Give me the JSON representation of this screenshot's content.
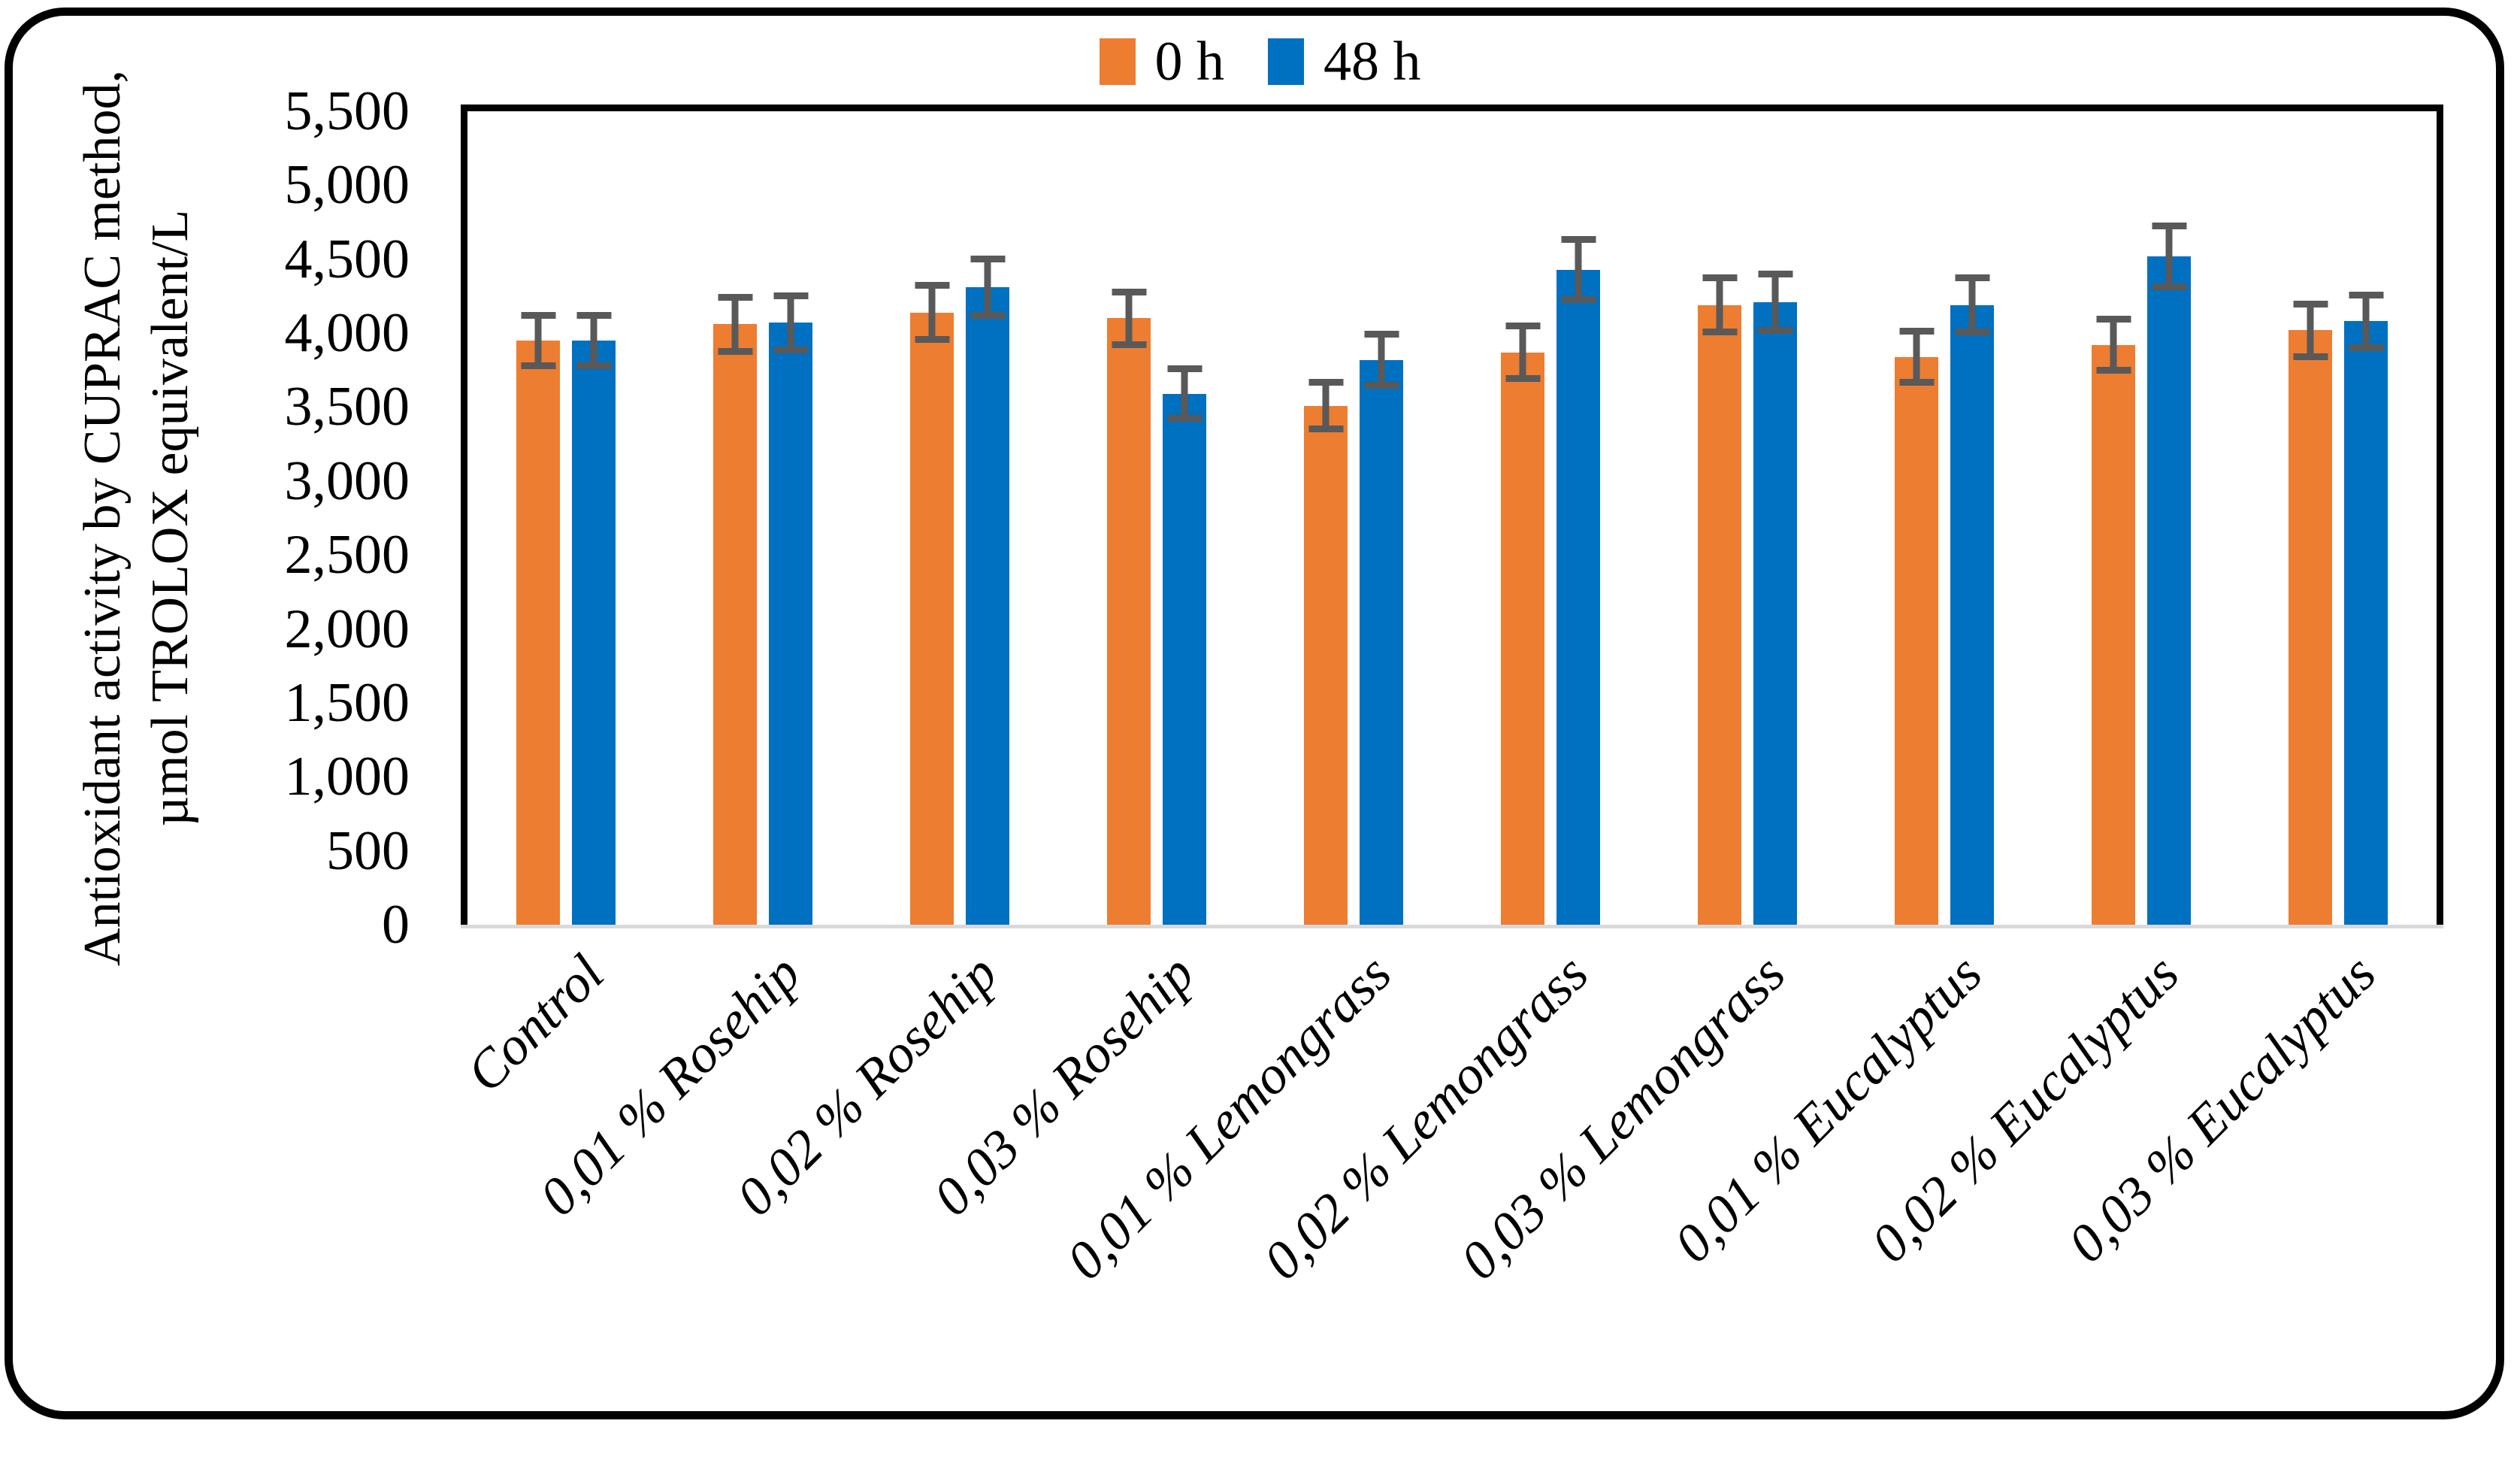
{
  "figure": {
    "description": "Grouped column chart with error bars inside a rounded black border"
  },
  "legend": {
    "position": "top-center",
    "items": [
      {
        "label": "0 h"
      },
      {
        "label": "48 h"
      }
    ]
  },
  "y_axis": {
    "title_line1": "Antioxidant activity by CUPRAC method,",
    "title_line2": "µmol TROLOX equivalent/L",
    "tick_labels": [
      "5,500",
      "5,000",
      "4,500",
      "4,000",
      "3,500",
      "3,000",
      "2,500",
      "2,000",
      "1,500",
      "1,000",
      "500",
      "0"
    ]
  },
  "chart_data": {
    "type": "bar",
    "title": "",
    "xlabel": "",
    "ylabel": "Antioxidant activity by CUPRAC method, µmol TROLOX equivalent/L",
    "ylim": [
      0,
      5500
    ],
    "ytick_step": 500,
    "grid": false,
    "legend_position": "top-center",
    "error_bar_color": "#595959",
    "axis_line_color": "#D9D9D9",
    "categories": [
      "Control",
      "0,01 % Rosehip",
      "0,02 % Rosehip",
      "0,03 % Rosehip",
      "0,01 % Lemongrass",
      "0,02 % Lemongrass",
      "0,03 % Lemongrass",
      "0,01 % Eucalyptus",
      "0,02 % Eucalyptus",
      "0,03 % Eucalyptus"
    ],
    "series": [
      {
        "name": "0 h",
        "color": "#ED7D31",
        "values": [
          3950,
          4060,
          4140,
          4100,
          3510,
          3870,
          4190,
          3840,
          3920,
          4020
        ],
        "errors": [
          195,
          205,
          205,
          200,
          180,
          200,
          205,
          195,
          195,
          200
        ]
      },
      {
        "name": "48 h",
        "color": "#0070C0",
        "values": [
          3950,
          4070,
          4310,
          3590,
          3820,
          4430,
          4210,
          4190,
          4520,
          4080
        ],
        "errors": [
          195,
          205,
          215,
          190,
          195,
          225,
          215,
          205,
          230,
          200
        ]
      }
    ]
  }
}
